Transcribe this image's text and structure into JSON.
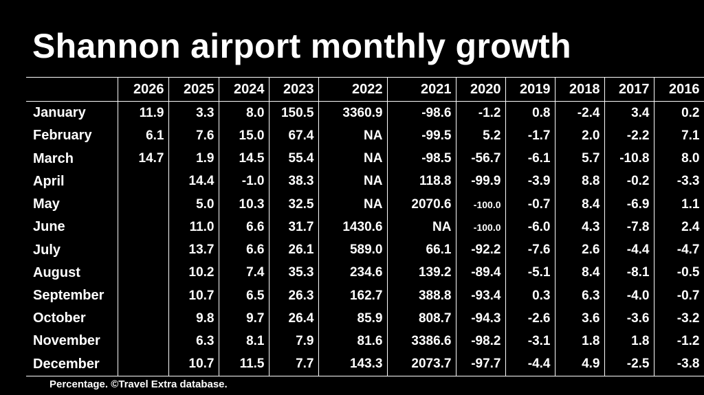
{
  "title": "Shannon airport monthly growth",
  "footnote": "Percentage. ©Travel Extra database.",
  "colors": {
    "background": "#000000",
    "text": "#ffffff",
    "grid": "#ffffff"
  },
  "chart_data": {
    "type": "table",
    "title": "Shannon airport monthly growth",
    "columns": [
      "2026",
      "2025",
      "2024",
      "2023",
      "2022",
      "2021",
      "2020",
      "2019",
      "2018",
      "2017",
      "2016"
    ],
    "rows": [
      {
        "label": "January",
        "values": [
          "11.9",
          "3.3",
          "8.0",
          "150.5",
          "3360.9",
          "-98.6",
          "-1.2",
          "0.8",
          "-2.4",
          "3.4",
          "0.2"
        ]
      },
      {
        "label": "February",
        "values": [
          "6.1",
          "7.6",
          "15.0",
          "67.4",
          "NA",
          "-99.5",
          "5.2",
          "-1.7",
          "2.0",
          "-2.2",
          "7.1"
        ]
      },
      {
        "label": "March",
        "values": [
          "14.7",
          "1.9",
          "14.5",
          "55.4",
          "NA",
          "-98.5",
          "-56.7",
          "-6.1",
          "5.7",
          "-10.8",
          "8.0"
        ]
      },
      {
        "label": "April",
        "values": [
          "",
          "14.4",
          "-1.0",
          "38.3",
          "NA",
          "118.8",
          "-99.9",
          "-3.9",
          "8.8",
          "-0.2",
          "-3.3"
        ]
      },
      {
        "label": "May",
        "values": [
          "",
          "5.0",
          "10.3",
          "32.5",
          "NA",
          "2070.6",
          "-100.0",
          "-0.7",
          "8.4",
          "-6.9",
          "1.1"
        ]
      },
      {
        "label": "June",
        "values": [
          "",
          "11.0",
          "6.6",
          "31.7",
          "1430.6",
          "NA",
          "-100.0",
          "-6.0",
          "4.3",
          "-7.8",
          "2.4"
        ]
      },
      {
        "label": "July",
        "values": [
          "",
          "13.7",
          "6.6",
          "26.1",
          "589.0",
          "66.1",
          "-92.2",
          "-7.6",
          "2.6",
          "-4.4",
          "-4.7"
        ]
      },
      {
        "label": "August",
        "values": [
          "",
          "10.2",
          "7.4",
          "35.3",
          "234.6",
          "139.2",
          "-89.4",
          "-5.1",
          "8.4",
          "-8.1",
          "-0.5"
        ]
      },
      {
        "label": "September",
        "values": [
          "",
          "10.7",
          "6.5",
          "26.3",
          "162.7",
          "388.8",
          "-93.4",
          "0.3",
          "6.3",
          "-4.0",
          "-0.7"
        ]
      },
      {
        "label": "October",
        "values": [
          "",
          "9.8",
          "9.7",
          "26.4",
          "85.9",
          "808.7",
          "-94.3",
          "-2.6",
          "3.6",
          "-3.6",
          "-3.2"
        ]
      },
      {
        "label": "November",
        "values": [
          "",
          "6.3",
          "8.1",
          "7.9",
          "81.6",
          "3386.6",
          "-98.2",
          "-3.1",
          "1.8",
          "1.8",
          "-1.2"
        ]
      },
      {
        "label": "December",
        "values": [
          "",
          "10.7",
          "11.5",
          "7.7",
          "143.3",
          "2073.7",
          "-97.7",
          "-4.4",
          "4.9",
          "-2.5",
          "-3.8"
        ]
      }
    ]
  }
}
